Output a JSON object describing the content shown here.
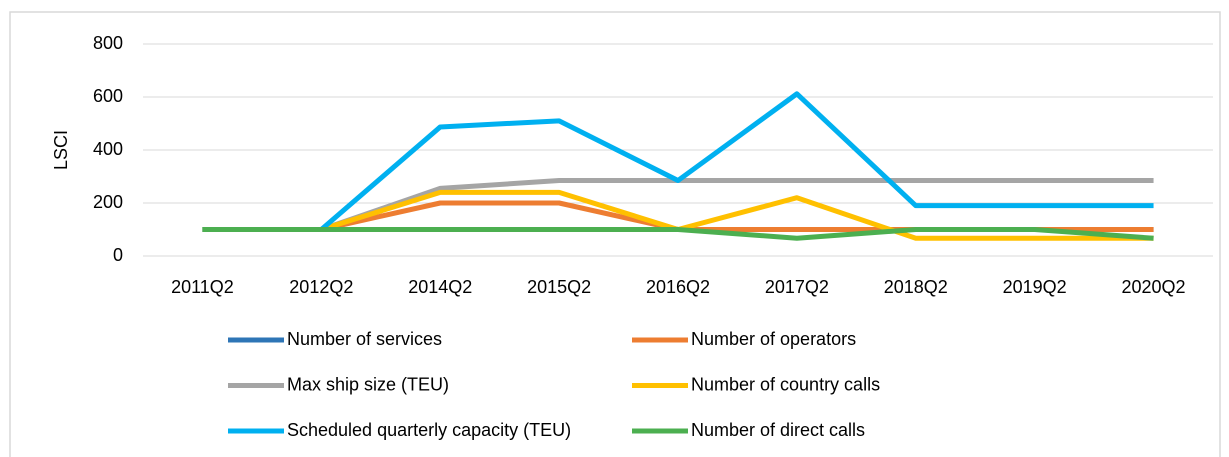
{
  "chart_data": {
    "type": "line",
    "y_label": "LSCI",
    "categories": [
      "2011Q2",
      "2012Q2",
      "2014Q2",
      "2015Q2",
      "2016Q2",
      "2017Q2",
      "2018Q2",
      "2019Q2",
      "2020Q2"
    ],
    "series": [
      {
        "name": "Number of services",
        "color": "#2e75b6",
        "values": [
          100,
          100,
          100,
          100,
          100,
          100,
          100,
          100,
          100
        ]
      },
      {
        "name": "Number of operators",
        "color": "#ed7d31",
        "values": [
          100,
          100,
          200,
          200,
          100,
          100,
          100,
          100,
          100
        ]
      },
      {
        "name": "Max ship size (TEU)",
        "color": "#a5a5a5",
        "values": [
          100,
          100,
          255,
          285,
          285,
          285,
          285,
          285,
          285
        ]
      },
      {
        "name": "Number of country calls",
        "color": "#ffc000",
        "values": [
          100,
          100,
          240,
          240,
          100,
          220,
          67,
          67,
          67
        ]
      },
      {
        "name": "Scheduled quarterly capacity (TEU)",
        "color": "#00b0f0",
        "values": [
          100,
          100,
          487,
          510,
          285,
          612,
          190,
          190,
          190
        ]
      },
      {
        "name": "Number of direct calls",
        "color": "#4caf50",
        "values": [
          100,
          100,
          100,
          100,
          100,
          67,
          100,
          100,
          67
        ]
      }
    ],
    "ylim": [
      0,
      800
    ],
    "yticks": [
      0,
      200,
      400,
      600,
      800
    ],
    "grid": true
  }
}
